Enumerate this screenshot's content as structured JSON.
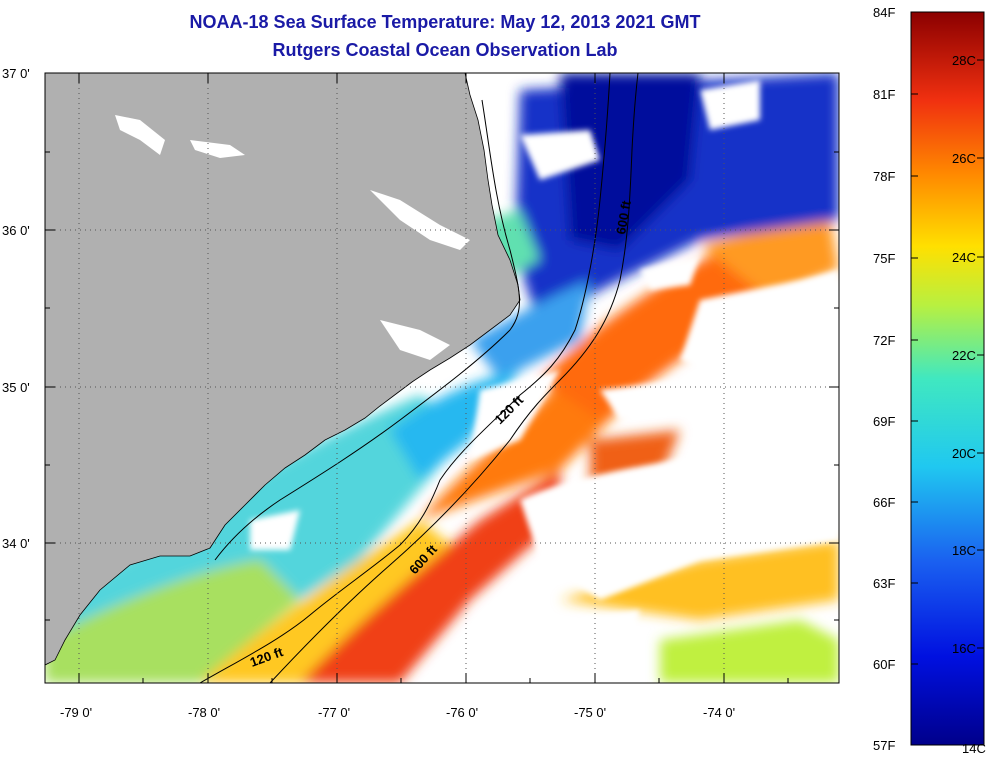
{
  "header": {
    "title": "NOAA-18 Sea Surface Temperature:  May 12, 2013 2021 GMT",
    "subtitle": "Rutgers Coastal Ocean Observation Lab"
  },
  "axes": {
    "lat_labels": [
      "37 0'",
      "36 0'",
      "35 0'",
      "34 0'"
    ],
    "lon_labels": [
      "-79 0'",
      "-78 0'",
      "-77 0'",
      "-76 0'",
      "-75 0'",
      "-74 0'"
    ]
  },
  "contours": {
    "label_120_north": "120 ft",
    "label_600_north": "600 ft",
    "label_600_south": "600 ft",
    "label_120_south": "120 ft"
  },
  "colorbar": {
    "fahrenheit": [
      "84F",
      "81F",
      "78F",
      "75F",
      "72F",
      "69F",
      "66F",
      "63F",
      "60F",
      "57F"
    ],
    "celsius": [
      "28C",
      "26C",
      "24C",
      "22C",
      "20C",
      "18C",
      "16C",
      "14C"
    ]
  },
  "colors": {
    "land": "#b0b0b0",
    "cloud": "#ffffff",
    "grid": "#555555",
    "title": "#1a1aa6"
  }
}
